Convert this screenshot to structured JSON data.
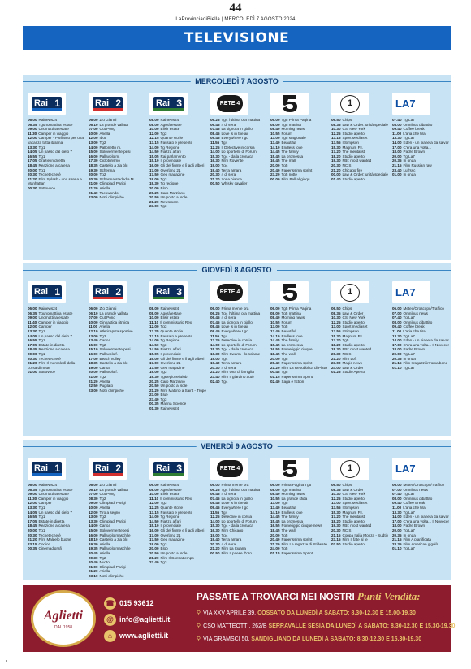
{
  "masthead": {
    "page_number": "44",
    "paper_line": "LaProvinciadiBiella | MERCOLEDÌ 7 AGOSTO 2024"
  },
  "section_title": "TELEVISIONE",
  "channels": [
    "Rai 1",
    "Rai 2",
    "Rai 3",
    "Rete 4",
    "Canale 5",
    "Italia 1",
    "La7"
  ],
  "days": [
    {
      "label": "MERCOLEDÌ 7 AGOSTO",
      "schedules": [
        [
          "06.00 Rainews24",
          "06.35 Tgunomattina estate",
          "09.00 Unomattina estate",
          "11.30 Camper in viaggio",
          "12.00 Camper - Parliamo per una",
          "vacanza tutta italiana",
          "13.30 Tg1",
          "14.05 Un passo dal cielo 7",
          "16.55 Tg1",
          "17.05 Grazie in diretta",
          "18.45 Reazione a catena",
          "20.00 Tg1",
          "20.30 Techetechetè",
          "21.20 Film Splash - una sirena a",
          "Manhattan",
          "00.30 Sottovoce"
        ],
        [
          "06.00 Zio Gianni",
          "06.10 La grande vallata",
          "07.00 Out Pong",
          "10.00 Ariella",
          "12.00 Ibot",
          "13.00 Tg2",
          "14.00 Pallonetto m.",
          "15.00 Solovermente pesi",
          "16.00 Pallavolo m.",
          "17.30 Cicloturismo",
          "18.35 Castello a zia blu",
          "19.30 Scherma",
          "20.00 Tg2",
          "20.30 Scherma stadedia M",
          "21.00 Olimpiadi Parigi",
          "21.20 Ariella",
          "21.40 Taekwondo",
          "23.00 Notti olimpiche"
        ],
        [
          "08.00 Rainews24",
          "08.00 Agorà estate",
          "10.00 Elisir estate",
          "12.00 Tg3",
          "12.15 Quante storie",
          "13.15 Passato e presente",
          "14.00 Tg Regione",
          "14.50 Piazza affari",
          "15.05 Rai parlamento",
          "15.10 Il provinciale",
          "16.00 Gli del fiume e lì agli alberi",
          "17.00 Overland 21",
          "17.50 Geo magazine",
          "19.00 Tg3",
          "19.30 Tg regione",
          "20.00 Blob",
          "20.25 Caro Marziano",
          "20.50 Un posto al sole",
          "21.20 Newsroom",
          "23.00 Tg3"
        ],
        [
          "06.25 Tg4 l'ultima ora mattina",
          "06.45 4 di sera",
          "07.45 La signora in giallo",
          "08.45 Love is in the air",
          "09.45 Everywhere I go",
          "11.55 Tg4",
          "12.25 Il Detective in corsia",
          "14.00 Lo sportello di Forum",
          "15.30 Tg4 - dalla cronaca",
          "16.30 Film Rovente",
          "19.00 Tg4",
          "19.40 Terra amara",
          "20.30 4 di sera",
          "21.20 Zona bianca",
          "00.50 Whisky cavalier"
        ],
        [
          "06.00 Tg5 Prima Pagina",
          "08.00 Tg5 mattina",
          "08.40 Morning news",
          "10.55 Forum",
          "13.00 Tg5 stagionale",
          "13.40 Beautiful",
          "14.10 Endless love",
          "14.45 The family",
          "15.45 La promessa",
          "16.45 The mall",
          "20.00 Tg5",
          "20.40 Paperissima sprint",
          "23.20 Tg5 notte",
          "00.00 Film Bell al giuqu"
        ],
        [
          "06.50 Chips",
          "08.35 Law & Order: unità speciale",
          "10.30 CSI New York",
          "12.25 Studio aperto",
          "13.15 Sport Mediaset",
          "13.55 I Simpson",
          "15.30 Magnum P.I.",
          "17.20 The mentalist",
          "18.20 Studio aperto",
          "19.30 FBI: most wanted",
          "20.30 NCIS",
          "21.20 Chicago fire",
          "00.00 Law & Order: unità speciale",
          "01.40 Studio aperto"
        ],
        [
          "07.40 Tg La7",
          "08.00 Omnibus dibattito",
          "09.40 Coffee break",
          "11.00 L'aria che tira",
          "13.30 Tg La7",
          "14.00 Eden - un pianeta da salvare",
          "17.00 C'era una volta...",
          "18.00 Padre Brown",
          "20.00 Tg La7",
          "20.35 In onda",
          "21.15 Film Russian raw",
          "23.40 Lull'ssc",
          "01.00 In onda"
        ]
      ]
    },
    {
      "label": "GIOVEDÌ 8 AGOSTO",
      "schedules": [
        [
          "06.00 Rainews24",
          "06.35 Tgunomattina estate",
          "09.00 Unomattina estate",
          "11.40 Camper in viaggio",
          "12.00 Camper",
          "13.30 Tg1",
          "14.05 Un passo dal cielo 7",
          "16.55 Tg1",
          "17.05 Estate in diretta",
          "18.45 Reazione a catena",
          "20.00 Tg1",
          "20.30 Techetechetè",
          "21.20 Film Il mercoledì della",
          "corsa di notte",
          "01.00 Sottovoce"
        ],
        [
          "06.00 Zio Gianni",
          "06.10 La grande vallata",
          "07.00 Out Pong",
          "10.00 Ginnastica ritmica",
          "11.00 Ariella",
          "12.10 Atleticapsta sportive",
          "13.00 Tg2",
          "13.40 Canoa",
          "15.00 Tg2",
          "15.10 Solovermente pesi",
          "16.00 Pallavolo f.",
          "17.00 Beach volley",
          "18.35 Castello a zia blu",
          "19.00 Canoa",
          "20.00 Pallavolo f.",
          "21.00 Tg2",
          "21.20 Ariella",
          "22.50 Pugilato",
          "23.00 Notti olimpiche"
        ],
        [
          "08.00 Rainews24",
          "08.00 Agorà estate",
          "10.00 Elisir estate",
          "11.10 Il commissario Rex",
          "12.00 Tg3",
          "12.25 Quante storie",
          "13.15 Passato e presente",
          "14.00 Tg Regione",
          "14.50 Tg3",
          "14.50 Piazza affari",
          "15.05 Il provinciale",
          "16.00 Gli del fiume e lì agli alberi",
          "17.00 Overland 21",
          "17.50 Geo magazine",
          "19.00 Tg3",
          "19.30 TgRegione/Blob",
          "20.25 Caro Marziano",
          "20.50 Un posto al sole",
          "21.20 Film Mattino a Saint - Tropez",
          "23.00 Blue",
          "23.40 Tg3",
          "00.35 Marina Science",
          "01.30 Rainews24"
        ],
        [
          "06.00 Prima mente ora",
          "06.25 Tg4 l'ultima ora mattina",
          "06.45 4 di sera",
          "07.45 La signora in giallo",
          "08.45 Love is in the air",
          "09.45 Everywhere I go",
          "11.55 Tg4",
          "12.25 Detective in corsia",
          "14.00 Lo sportello di Forum",
          "15.30 Tg4 - dalla cronaca",
          "16.30 Film Swarm - lo sciame",
          "19.00 Tg4",
          "19.40 Terra amara",
          "20.30 4 di sera",
          "21.20 Film Una di famiglia",
          "23.40 Film Il giardino autò",
          "02.40 Tg4"
        ],
        [
          "06.00 Tg5 Prima Pagina",
          "08.00 Tg5 mattina",
          "08.40 Morning news",
          "10.55 Forum",
          "13.00 Tg5",
          "13.40 Beautiful",
          "14.10 Endless love",
          "14.45 The family",
          "15.45 La promessa",
          "16.55 Pomeriggio cinque",
          "18.45 The wall",
          "20.00 Tg5",
          "20.40 Paperissima sprint",
          "21.20 Film La Repubblica di Platone",
          "00.48 Tg5",
          "01.15 Paperissima Sprint",
          "02.40 Saga e fiction"
        ],
        [
          "06.50 Chips",
          "08.35 Law & Order",
          "10.30 CSI New York",
          "12.25 Studio aperto",
          "13.00 Sport mediaset",
          "13.55 I Simpson",
          "15.30 Magnum P.I.",
          "17.20 Tg5",
          "18.20 Studio aperto",
          "18.30 FBI: most wanted",
          "20.30 NCIS",
          "21.20 Film Loft",
          "23.00 Magic news",
          "24.00 Law & Order",
          "01.25 Studio Aperto"
        ],
        [
          "06.00 Meteo/Oroscopo/Traffico",
          "07.00 Omnibus news",
          "07.40 Tg La7",
          "08.00 Omnibus dibattito",
          "09.40 Coffee break",
          "11.00 L'aria che tira",
          "13.30 Tg La7",
          "14.00 Eden - un pianeta da salvare",
          "17.00 C'era una volta... Il Novecento",
          "18.00 Padre Brown",
          "20.00 Tg La7",
          "20.35 In onda",
          "21.15 Film I ragazzi irrroma bene",
          "01.10 Tg La7"
        ]
      ]
    },
    {
      "label": "VENERDÌ 9 AGOSTO",
      "schedules": [
        [
          "06.00 Rainews24",
          "06.35 Tgunomattina estate",
          "09.00 Unomattina estate",
          "11.30 Camper in viaggio",
          "12.00 Camper",
          "13.30 Tg1",
          "14.05 Un passo dal cielo 7",
          "16.55 Tg1",
          "17.05 Estate in diretta",
          "18.45 Reazione a catena",
          "20.00 Tg1",
          "20.30 Techetechetè",
          "21.20 Film Malpelo buone",
          "23.15 Codice",
          "00.35 Cinemadigrafi"
        ],
        [
          "06.00 Zio Gianni",
          "06.10 La grande vallata",
          "07.00 Out Pong",
          "08.30 Tg2",
          "09.00 Olimpiadi Parigi",
          "10.00 Ariella",
          "12.00 Tiro a segno",
          "13.00 Tg2",
          "13.30 Olimpiadi Parigi",
          "14.00 Canoa",
          "15.00 Solovermentepesi",
          "16.00 Pallavolo maschile",
          "18.10 Castello a zia blu",
          "19.30 Ariella",
          "19.35 Pallavolo maschile",
          "20.45 Ariella",
          "20.30 Tg2",
          "20.40 Nuoto",
          "21.00 Olimpiadi Parigi",
          "21.20 Ariella",
          "23.10 Notti olimpiche"
        ],
        [
          "06.00 Rainews24",
          "08.00 Agorà estate",
          "10.00 Elisir estate",
          "11.10 Il commissario Rex",
          "12.00 Tg3",
          "12.25 Quante storie",
          "13.15 Passato e presente",
          "14.00 Tg Regione",
          "14.50 Piazza affari",
          "15.10 Il provinciale",
          "16.00 Gli del fiume e lì agli alberi",
          "17.00 Overland 21",
          "17.50 Geo magazine",
          "19.00 Tg3",
          "20.00 Blob",
          "20.50 Un posto al sole",
          "21.20 Film Il Contrattempo",
          "23.40 Tg3"
        ],
        [
          "06.00 Prima mente ora",
          "06.25 Tg4 l'ultima ora mattina",
          "06.45 4 di sera",
          "07.45 La signora in giallo",
          "08.45 Love is in the air",
          "09.45 Everywhere I go",
          "11.55 Tg4",
          "12.25 Detective in corsia",
          "14.00 Lo sportello di Forum",
          "15.30 Tg4 - dalla cronaca",
          "16.30 Film Chicago",
          "19.00 Tg4",
          "19.40 Terra amara",
          "20.30 4 di sera",
          "21.20 Film La Iguana",
          "00.50 Film Il paese d'oro"
        ],
        [
          "06.00 Prima Pagina Tg5",
          "08.00 Tg5 mattina",
          "08.40 Morning news",
          "10.55 La grande sfida",
          "13.00 Tg5",
          "13.40 Beautiful",
          "14.10 Endless love",
          "14.45 The family",
          "15.45 La promessa",
          "16.55 Pomeriggio cinque news",
          "18.45 The wall",
          "20.00 Tg5",
          "20.40 Paperissima sprint",
          "21.20 Film Le ragazze di Stillwater",
          "24.00 Tg5",
          "01.15 Paperissima Sprint"
        ],
        [
          "06.50 Chips",
          "08.35 Law & Order",
          "10.30 CSI New York",
          "12.25 Studio aperto",
          "13.00 Sport Mediaset",
          "13.55 I Simpson",
          "15.30 Magnum P.I.",
          "17.20 The mentalist",
          "18.20 Studio aperto",
          "19.30 FBI: most wanted",
          "20.30 NCIS",
          "21.15 Coppa Italia Monza - Sudtirol",
          "23.15 Film Il fate al te",
          "02.50 Studio aperto"
        ],
        [
          "06.00 Meteo/Oroscopo/Traffico",
          "07.00 Omnibus news",
          "07.40 Tg La7",
          "08.00 Omnibus dibattito",
          "09.40 Coffee Break",
          "11.00 L'aria che tira",
          "13.30 Tg La7",
          "14.00 Eden - un pianeta da salvare",
          "17.00 C'era una volta... Il Novecento",
          "18.00 Padre Brown",
          "20.00 Tg La7",
          "20.35 In onda",
          "21.15 Film A pianificata",
          "23.35 Film American gigolò",
          "01.10 Tg La7"
        ]
      ]
    }
  ],
  "ad": {
    "brand": "Aglietti",
    "established": "DAL 1958",
    "phone": "015 93612",
    "email": "info@aglietti.it",
    "web": "www.aglietti.it",
    "headline_main": "PASSATE A TROVARCI NEI NOSTRI",
    "headline_script": "Punti Vendita:",
    "stores": [
      {
        "address": "VIA XXV APRILE 39,",
        "town": "COSSATO",
        "hours": "DA LUNEDÌ A SABATO: 8.30-12.30 E 15.00-19.30"
      },
      {
        "address": "CSO MATTEOTTI, 262/B",
        "town": "SERRAVALLE SESIA",
        "hours": "DA LUNEDÌ A SABATO: 8.30-12.30 E 15.30-19.30"
      },
      {
        "address": "VIA GRAMSCI 50,",
        "town": "SANDIGLIANO",
        "hours": "DA LUNEDÌ A SABATO: 8.30-12.30 E 15.30-19.30"
      }
    ],
    "colors": {
      "background": "#8c1c2e",
      "accent": "#e8c36b"
    }
  }
}
